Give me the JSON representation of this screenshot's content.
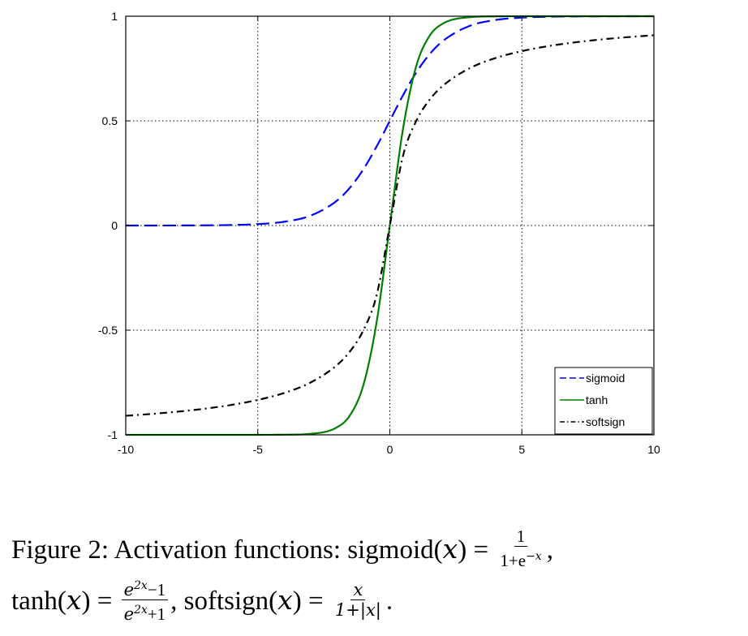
{
  "chart_data": {
    "type": "line",
    "xlim": [
      -10,
      10
    ],
    "ylim": [
      -1,
      1
    ],
    "xticks": [
      "-10",
      "-5",
      "0",
      "5",
      "10"
    ],
    "yticks": [
      "-1",
      "-0.5",
      "0",
      "0.5",
      "1"
    ],
    "grid": true,
    "legend_position": "bottom-right",
    "x": [
      -10,
      -9,
      -8,
      -7,
      -6,
      -5,
      -4,
      -3,
      -2,
      -1.5,
      -1,
      -0.5,
      0,
      0.5,
      1,
      1.5,
      2,
      3,
      4,
      5,
      6,
      7,
      8,
      9,
      10
    ],
    "series": [
      {
        "name": "sigmoid",
        "color": "#0000ff",
        "style": "dashed",
        "values": [
          0.0,
          0.0001,
          0.0003,
          0.0009,
          0.0025,
          0.0067,
          0.018,
          0.0474,
          0.1192,
          0.1824,
          0.2689,
          0.3775,
          0.5,
          0.6225,
          0.7311,
          0.8176,
          0.8808,
          0.9526,
          0.982,
          0.9933,
          0.9975,
          0.9991,
          0.9997,
          0.9999,
          1.0
        ]
      },
      {
        "name": "tanh",
        "color": "#008000",
        "style": "solid",
        "values": [
          -1.0,
          -1.0,
          -1.0,
          -1.0,
          -1.0,
          -0.9999,
          -0.9993,
          -0.9951,
          -0.964,
          -0.9051,
          -0.7616,
          -0.4621,
          0.0,
          0.4621,
          0.7616,
          0.9051,
          0.964,
          0.9951,
          0.9993,
          0.9999,
          1.0,
          1.0,
          1.0,
          1.0,
          1.0
        ]
      },
      {
        "name": "softsign",
        "color": "#000000",
        "style": "dashdot",
        "values": [
          -0.9091,
          -0.9,
          -0.8889,
          -0.875,
          -0.8571,
          -0.8333,
          -0.8,
          -0.75,
          -0.6667,
          -0.6,
          -0.5,
          -0.3333,
          0.0,
          0.3333,
          0.5,
          0.6,
          0.6667,
          0.75,
          0.8,
          0.8333,
          0.8571,
          0.875,
          0.8889,
          0.9,
          0.9091
        ]
      }
    ]
  },
  "caption": {
    "prefix": "Figure 2:  Activation functions:  ",
    "sigmoid_lhs": "sigmoid(",
    "var": "x",
    "close": ")",
    "eq": " = ",
    "sigmoid_num": "1",
    "sigmoid_den": "1+e",
    "sigmoid_den_exp": "−x",
    "comma": ",",
    "tanh_lhs": "tanh(",
    "tanh_num": "e",
    "tanh_num_exp": "2x",
    "tanh_num_tail": "−1",
    "tanh_den": "e",
    "tanh_den_exp": "2x",
    "tanh_den_tail": "+1",
    "sep": ", ",
    "softsign_lhs": "softsign(",
    "softsign_num": "x",
    "softsign_den": "1+|x|",
    "period": "."
  }
}
